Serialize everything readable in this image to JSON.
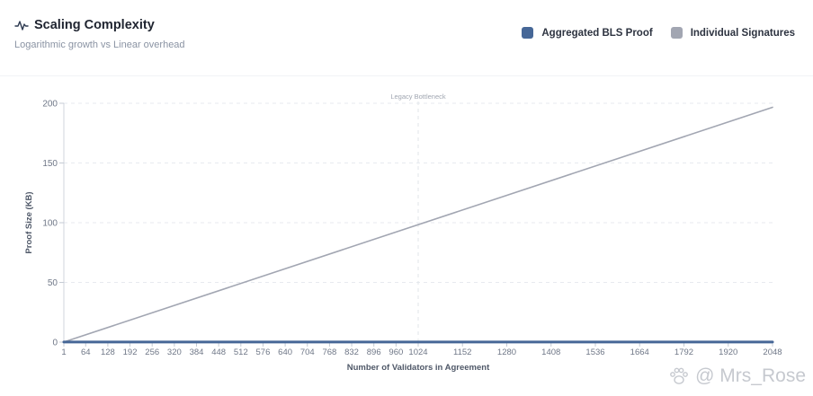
{
  "header": {
    "title": "Scaling Complexity",
    "subtitle": "Logarithmic growth vs Linear overhead"
  },
  "legend": [
    {
      "label": "Aggregated BLS Proof",
      "color": "#466797"
    },
    {
      "label": "Individual Signatures",
      "color": "#a2a6b2"
    }
  ],
  "watermark": {
    "text": "@ Mrs_Rose",
    "icon": "paw-icon"
  },
  "icons": {
    "title": "pulse-icon"
  },
  "chart_data": {
    "type": "line",
    "xlabel": "Number of Validators in Agreement",
    "ylabel": "Proof Size (KB)",
    "xlim": [
      1,
      2048
    ],
    "ylim": [
      0,
      200
    ],
    "x_ticks": [
      1,
      64,
      128,
      192,
      256,
      320,
      384,
      448,
      512,
      576,
      640,
      704,
      768,
      832,
      896,
      960,
      1024,
      1152,
      1280,
      1408,
      1536,
      1664,
      1792,
      1920,
      2048
    ],
    "y_ticks": [
      0,
      50,
      100,
      150,
      200
    ],
    "grid": true,
    "legend_position": "top-right",
    "series": [
      {
        "name": "Aggregated BLS Proof",
        "color": "#466797",
        "x": [
          1,
          2048
        ],
        "values": [
          0.096,
          0.096
        ]
      },
      {
        "name": "Individual Signatures",
        "color": "#a2a6b2",
        "x": [
          1,
          2048
        ],
        "values": [
          0.096,
          196.6
        ]
      }
    ],
    "annotations": [
      {
        "x": 1024,
        "label": "Legacy Bottleneck"
      }
    ]
  }
}
